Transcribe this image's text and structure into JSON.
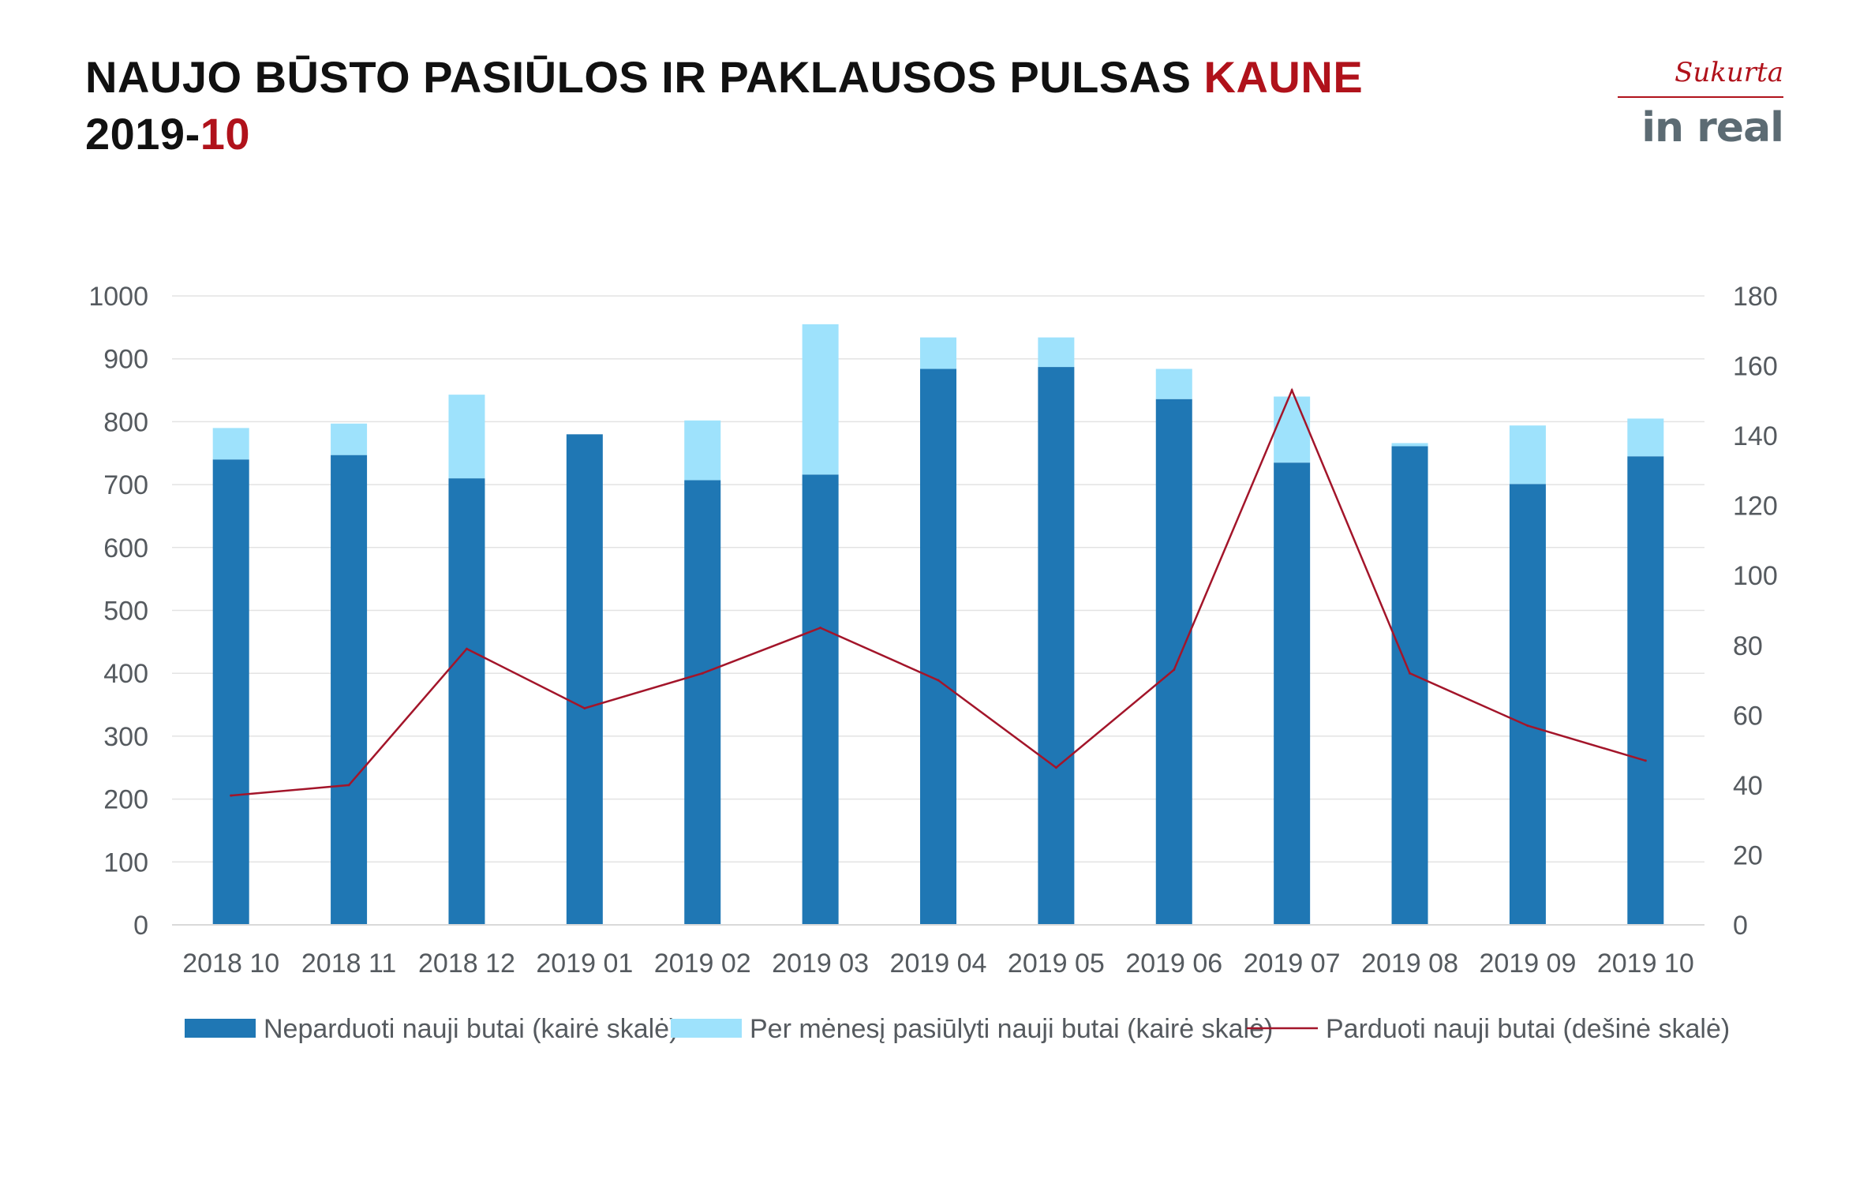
{
  "header": {
    "title_main": "NAUJO BŪSTO PASIŪLOS IR PAKLAUSOS PULSAS ",
    "title_city": "KAUNE",
    "date_prefix": "2019-",
    "date_month": "10"
  },
  "logo": {
    "tagline": "Sukurta",
    "brand": "in real"
  },
  "colors": {
    "unsold": "#1f77b4",
    "offered": "#9ee2fc",
    "sold": "#a3152a",
    "accent": "#b0121b"
  },
  "chart_data": {
    "type": "bar",
    "categories": [
      "2018 10",
      "2018 11",
      "2018 12",
      "2019 01",
      "2019 02",
      "2019 03",
      "2019 04",
      "2019 05",
      "2019 06",
      "2019 07",
      "2019 08",
      "2019 09",
      "2019 10"
    ],
    "series": [
      {
        "name": "Neparduoti nauji butai (kairė skalė)",
        "type": "bar",
        "stack": "left",
        "axis": "left",
        "values": [
          740,
          747,
          710,
          780,
          707,
          716,
          884,
          887,
          836,
          735,
          761,
          701,
          745
        ]
      },
      {
        "name": "Per mėnesį pasiūlyti nauji butai (kairė skalė)",
        "type": "bar",
        "stack": "left",
        "axis": "left",
        "values": [
          50,
          50,
          133,
          0,
          95,
          239,
          50,
          47,
          48,
          105,
          5,
          93,
          60
        ]
      },
      {
        "name": "Parduoti nauji butai (dešinė skalė)",
        "type": "line",
        "axis": "right",
        "values": [
          37,
          40,
          79,
          62,
          72,
          85,
          70,
          45,
          73,
          153,
          72,
          57,
          47
        ]
      }
    ],
    "left_axis": {
      "ylim": [
        0,
        1000
      ],
      "ticks": [
        "0",
        "100",
        "200",
        "300",
        "400",
        "500",
        "600",
        "700",
        "800",
        "900",
        "1000"
      ]
    },
    "right_axis": {
      "ylim": [
        0,
        180
      ],
      "ticks": [
        "0",
        "20",
        "40",
        "60",
        "80",
        "100",
        "120",
        "140",
        "160",
        "180"
      ]
    },
    "grid": true,
    "legend": "bottom"
  }
}
